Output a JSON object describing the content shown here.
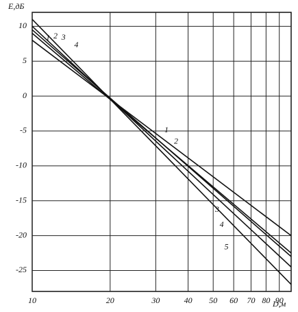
{
  "chart_data": {
    "type": "line",
    "x_label": "D,м",
    "y_label": "E,дБ",
    "xscale": "log",
    "xlim": [
      10,
      100
    ],
    "ylim": [
      -28,
      12
    ],
    "xticks": [
      10,
      20,
      30,
      40,
      50,
      60,
      70,
      80,
      90
    ],
    "yticks": [
      -25,
      -20,
      -15,
      -10,
      -5,
      0,
      5,
      10
    ],
    "grid": true,
    "series": [
      {
        "name": "1",
        "color": "#111111",
        "x": [
          10,
          100
        ],
        "values": [
          8,
          -20
        ]
      },
      {
        "name": "2",
        "color": "#111111",
        "x": [
          10,
          100
        ],
        "values": [
          9,
          -22.5
        ]
      },
      {
        "name": "3",
        "color": "#111111",
        "x": [
          10,
          100
        ],
        "values": [
          9.5,
          -23
        ]
      },
      {
        "name": "4",
        "color": "#111111",
        "x": [
          10,
          100
        ],
        "values": [
          10,
          -24.5
        ]
      },
      {
        "name": "5",
        "color": "#111111",
        "x": [
          10,
          100
        ],
        "values": [
          11,
          -27
        ]
      }
    ]
  }
}
